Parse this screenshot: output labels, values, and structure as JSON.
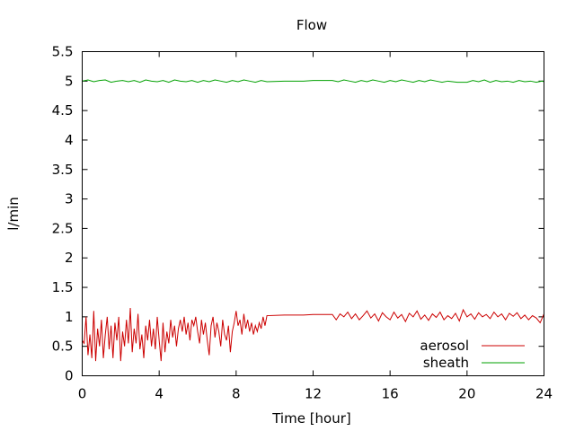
{
  "chart_data": {
    "type": "line",
    "title": "Flow",
    "xlabel": "Time [hour]",
    "ylabel": "l/min",
    "xlim": [
      0,
      24
    ],
    "ylim": [
      0,
      5.5
    ],
    "xticks": [
      0,
      4,
      8,
      12,
      16,
      20,
      24
    ],
    "yticks": [
      0,
      0.5,
      1,
      1.5,
      2,
      2.5,
      3,
      3.5,
      4,
      4.5,
      5,
      5.5
    ],
    "grid": false,
    "legend_position": "bottom-right",
    "series": [
      {
        "name": "aerosol",
        "color": "#cc0000",
        "points": [
          [
            0.0,
            0.6
          ],
          [
            0.1,
            0.55
          ],
          [
            0.2,
            1.0
          ],
          [
            0.3,
            0.35
          ],
          [
            0.4,
            0.7
          ],
          [
            0.5,
            0.3
          ],
          [
            0.6,
            1.1
          ],
          [
            0.7,
            0.25
          ],
          [
            0.8,
            0.8
          ],
          [
            0.9,
            0.5
          ],
          [
            1.0,
            0.95
          ],
          [
            1.1,
            0.3
          ],
          [
            1.2,
            0.7
          ],
          [
            1.3,
            1.0
          ],
          [
            1.4,
            0.45
          ],
          [
            1.5,
            0.85
          ],
          [
            1.6,
            0.3
          ],
          [
            1.7,
            0.9
          ],
          [
            1.8,
            0.6
          ],
          [
            1.9,
            1.0
          ],
          [
            2.0,
            0.25
          ],
          [
            2.1,
            0.75
          ],
          [
            2.2,
            0.5
          ],
          [
            2.3,
            0.95
          ],
          [
            2.4,
            0.55
          ],
          [
            2.5,
            1.15
          ],
          [
            2.6,
            0.4
          ],
          [
            2.7,
            0.8
          ],
          [
            2.8,
            0.55
          ],
          [
            2.9,
            1.05
          ],
          [
            3.0,
            0.45
          ],
          [
            3.1,
            0.7
          ],
          [
            3.2,
            0.3
          ],
          [
            3.3,
            0.85
          ],
          [
            3.4,
            0.6
          ],
          [
            3.5,
            0.95
          ],
          [
            3.6,
            0.5
          ],
          [
            3.7,
            0.8
          ],
          [
            3.8,
            0.45
          ],
          [
            3.9,
            1.0
          ],
          [
            4.0,
            0.6
          ],
          [
            4.1,
            0.25
          ],
          [
            4.2,
            0.9
          ],
          [
            4.3,
            0.4
          ],
          [
            4.4,
            0.75
          ],
          [
            4.5,
            0.55
          ],
          [
            4.6,
            0.95
          ],
          [
            4.7,
            0.65
          ],
          [
            4.8,
            0.85
          ],
          [
            4.9,
            0.5
          ],
          [
            5.0,
            0.8
          ],
          [
            5.1,
            0.95
          ],
          [
            5.2,
            0.75
          ],
          [
            5.3,
            1.0
          ],
          [
            5.4,
            0.7
          ],
          [
            5.5,
            0.9
          ],
          [
            5.6,
            0.6
          ],
          [
            5.7,
            0.95
          ],
          [
            5.8,
            0.85
          ],
          [
            5.9,
            1.0
          ],
          [
            6.0,
            0.75
          ],
          [
            6.1,
            0.55
          ],
          [
            6.2,
            0.95
          ],
          [
            6.3,
            0.7
          ],
          [
            6.4,
            0.9
          ],
          [
            6.5,
            0.6
          ],
          [
            6.6,
            0.35
          ],
          [
            6.7,
            0.85
          ],
          [
            6.8,
            1.0
          ],
          [
            6.9,
            0.65
          ],
          [
            7.0,
            0.9
          ],
          [
            7.1,
            0.75
          ],
          [
            7.2,
            0.5
          ],
          [
            7.3,
            0.95
          ],
          [
            7.4,
            0.7
          ],
          [
            7.5,
            0.6
          ],
          [
            7.6,
            0.85
          ],
          [
            7.7,
            0.4
          ],
          [
            7.8,
            0.75
          ],
          [
            7.9,
            0.9
          ],
          [
            8.0,
            1.1
          ],
          [
            8.1,
            0.85
          ],
          [
            8.2,
            0.95
          ],
          [
            8.3,
            0.7
          ],
          [
            8.4,
            1.05
          ],
          [
            8.5,
            0.8
          ],
          [
            8.6,
            0.95
          ],
          [
            8.7,
            0.75
          ],
          [
            8.8,
            0.9
          ],
          [
            8.9,
            0.7
          ],
          [
            9.0,
            0.85
          ],
          [
            9.1,
            0.75
          ],
          [
            9.2,
            0.9
          ],
          [
            9.3,
            0.8
          ],
          [
            9.4,
            1.0
          ],
          [
            9.5,
            0.85
          ],
          [
            9.6,
            1.02
          ],
          [
            10.5,
            1.03
          ],
          [
            11.5,
            1.03
          ],
          [
            12.0,
            1.04
          ],
          [
            12.5,
            1.04
          ],
          [
            13.0,
            1.04
          ],
          [
            13.2,
            0.95
          ],
          [
            13.4,
            1.05
          ],
          [
            13.6,
            1.0
          ],
          [
            13.8,
            1.08
          ],
          [
            14.0,
            0.97
          ],
          [
            14.2,
            1.05
          ],
          [
            14.4,
            0.95
          ],
          [
            14.6,
            1.02
          ],
          [
            14.8,
            1.1
          ],
          [
            15.0,
            0.98
          ],
          [
            15.2,
            1.05
          ],
          [
            15.4,
            0.93
          ],
          [
            15.6,
            1.07
          ],
          [
            15.8,
            1.0
          ],
          [
            16.0,
            0.95
          ],
          [
            16.2,
            1.08
          ],
          [
            16.4,
            0.98
          ],
          [
            16.6,
            1.04
          ],
          [
            16.8,
            0.92
          ],
          [
            17.0,
            1.06
          ],
          [
            17.2,
            1.0
          ],
          [
            17.4,
            1.1
          ],
          [
            17.6,
            0.96
          ],
          [
            17.8,
            1.03
          ],
          [
            18.0,
            0.94
          ],
          [
            18.2,
            1.05
          ],
          [
            18.4,
            0.99
          ],
          [
            18.6,
            1.08
          ],
          [
            18.8,
            0.95
          ],
          [
            19.0,
            1.02
          ],
          [
            19.2,
            0.97
          ],
          [
            19.4,
            1.06
          ],
          [
            19.6,
            0.93
          ],
          [
            19.8,
            1.12
          ],
          [
            20.0,
            1.0
          ],
          [
            20.2,
            1.05
          ],
          [
            20.4,
            0.96
          ],
          [
            20.6,
            1.07
          ],
          [
            20.8,
            1.0
          ],
          [
            21.0,
            1.04
          ],
          [
            21.2,
            0.97
          ],
          [
            21.4,
            1.08
          ],
          [
            21.6,
            1.0
          ],
          [
            21.8,
            1.05
          ],
          [
            22.0,
            0.95
          ],
          [
            22.2,
            1.06
          ],
          [
            22.4,
            1.01
          ],
          [
            22.6,
            1.07
          ],
          [
            22.8,
            0.97
          ],
          [
            23.0,
            1.03
          ],
          [
            23.2,
            0.95
          ],
          [
            23.4,
            1.02
          ],
          [
            23.6,
            0.98
          ],
          [
            23.8,
            0.9
          ],
          [
            24.0,
            1.05
          ]
        ]
      },
      {
        "name": "sheath",
        "color": "#00a000",
        "points": [
          [
            0.0,
            5.0
          ],
          [
            0.3,
            5.02
          ],
          [
            0.6,
            4.99
          ],
          [
            0.9,
            5.01
          ],
          [
            1.2,
            5.02
          ],
          [
            1.5,
            4.98
          ],
          [
            1.8,
            5.0
          ],
          [
            2.1,
            5.01
          ],
          [
            2.4,
            4.99
          ],
          [
            2.7,
            5.01
          ],
          [
            3.0,
            4.98
          ],
          [
            3.3,
            5.02
          ],
          [
            3.6,
            5.0
          ],
          [
            3.9,
            4.99
          ],
          [
            4.2,
            5.01
          ],
          [
            4.5,
            4.98
          ],
          [
            4.8,
            5.02
          ],
          [
            5.1,
            5.0
          ],
          [
            5.4,
            4.99
          ],
          [
            5.7,
            5.01
          ],
          [
            6.0,
            4.98
          ],
          [
            6.3,
            5.01
          ],
          [
            6.6,
            4.99
          ],
          [
            6.9,
            5.02
          ],
          [
            7.2,
            5.0
          ],
          [
            7.5,
            4.98
          ],
          [
            7.8,
            5.01
          ],
          [
            8.1,
            4.99
          ],
          [
            8.4,
            5.02
          ],
          [
            8.7,
            5.0
          ],
          [
            9.0,
            4.98
          ],
          [
            9.3,
            5.01
          ],
          [
            9.6,
            4.99
          ],
          [
            10.5,
            5.0
          ],
          [
            11.5,
            5.0
          ],
          [
            12.0,
            5.01
          ],
          [
            13.0,
            5.01
          ],
          [
            13.3,
            4.99
          ],
          [
            13.6,
            5.02
          ],
          [
            13.9,
            5.0
          ],
          [
            14.2,
            4.98
          ],
          [
            14.5,
            5.01
          ],
          [
            14.8,
            4.99
          ],
          [
            15.1,
            5.02
          ],
          [
            15.4,
            5.0
          ],
          [
            15.7,
            4.98
          ],
          [
            16.0,
            5.01
          ],
          [
            16.3,
            4.99
          ],
          [
            16.6,
            5.02
          ],
          [
            16.9,
            5.0
          ],
          [
            17.2,
            4.98
          ],
          [
            17.5,
            5.01
          ],
          [
            17.8,
            4.99
          ],
          [
            18.1,
            5.02
          ],
          [
            18.4,
            5.0
          ],
          [
            18.7,
            4.98
          ],
          [
            19.0,
            5.0
          ],
          [
            19.5,
            4.98
          ],
          [
            20.0,
            4.98
          ],
          [
            20.3,
            5.01
          ],
          [
            20.6,
            4.99
          ],
          [
            20.9,
            5.02
          ],
          [
            21.2,
            4.98
          ],
          [
            21.5,
            5.01
          ],
          [
            21.8,
            4.99
          ],
          [
            22.1,
            5.0
          ],
          [
            22.4,
            4.98
          ],
          [
            22.7,
            5.01
          ],
          [
            23.0,
            4.99
          ],
          [
            23.3,
            5.0
          ],
          [
            23.6,
            4.98
          ],
          [
            23.9,
            5.0
          ],
          [
            24.0,
            4.99
          ]
        ]
      }
    ]
  }
}
